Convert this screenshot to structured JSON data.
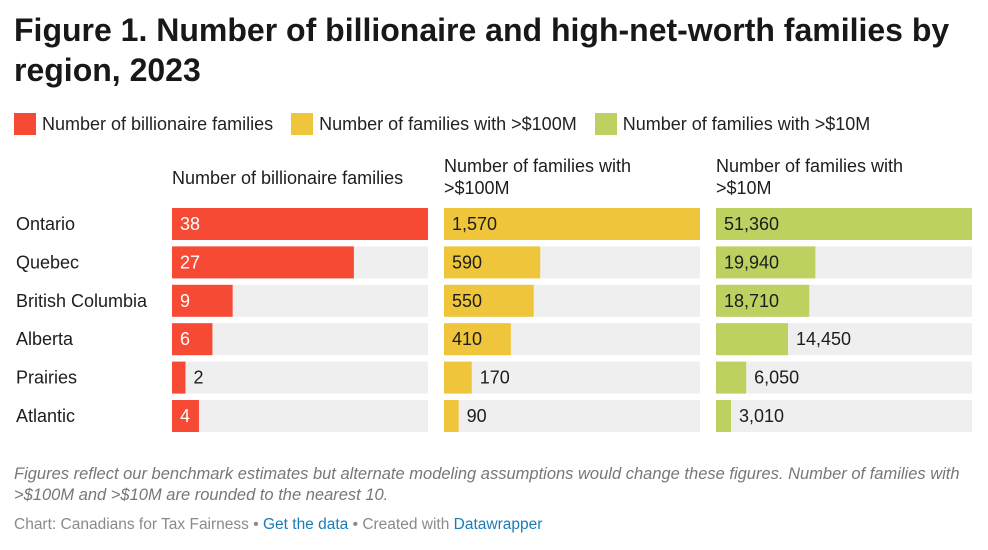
{
  "title": "Figure 1. Number of billionaire and high-net-worth families by region, 2023",
  "legend": [
    {
      "label": "Number of billionaire families",
      "color": "#f64a34"
    },
    {
      "label": "Number of families with >$100M",
      "color": "#efc53b"
    },
    {
      "label": "Number of families with >$10M",
      "color": "#bdd161"
    }
  ],
  "chart_data": {
    "type": "bar",
    "orientation": "horizontal",
    "layout": "small-multiples",
    "categories": [
      "Ontario",
      "Quebec",
      "British Columbia",
      "Alberta",
      "Prairies",
      "Atlantic"
    ],
    "series": [
      {
        "name": "Number of billionaire families",
        "header": [
          "Number of billionaire families"
        ],
        "color": "#f64a34",
        "values": [
          38,
          27,
          9,
          6,
          2,
          4
        ],
        "labels": [
          "38",
          "27",
          "9",
          "6",
          "2",
          "4"
        ],
        "max": 38
      },
      {
        "name": "Number of families with >$100M",
        "header": [
          "Number of families with",
          ">$100M"
        ],
        "color": "#efc53b",
        "values": [
          1570,
          590,
          550,
          410,
          170,
          90
        ],
        "labels": [
          "1,570",
          "590",
          "550",
          "410",
          "170",
          "90"
        ],
        "max": 1570
      },
      {
        "name": "Number of families with >$10M",
        "header": [
          "Number of families with",
          ">$10M"
        ],
        "color": "#bdd161",
        "values": [
          51360,
          19940,
          18710,
          14450,
          6050,
          3010
        ],
        "labels": [
          "51,360",
          "19,940",
          "18,710",
          "14,450",
          "6,050",
          "3,010"
        ],
        "max": 51360
      }
    ],
    "track_color": "#efefef",
    "grid": false,
    "legend_position": "top-left"
  },
  "notes": "Figures reflect our benchmark estimates but alternate modeling assumptions would change these figures. Number of families with >$100M and >$10M are rounded to the nearest 10.",
  "credit": {
    "prefix": "Chart: Canadians for Tax Fairness",
    "sep1": " • ",
    "data_link": "Get the data",
    "sep2": " • Created with ",
    "tool_link": "Datawrapper"
  }
}
